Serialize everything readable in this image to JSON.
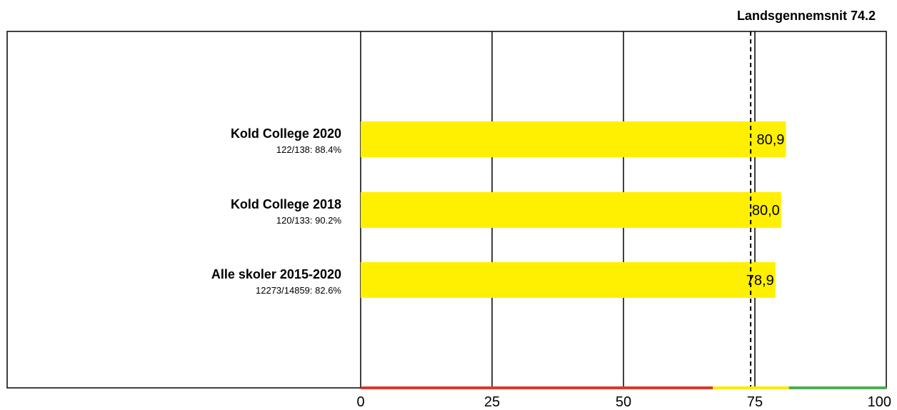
{
  "chart_data": {
    "type": "bar",
    "orientation": "horizontal",
    "categories": [
      "Kold College 2020",
      "Kold College 2018",
      "Alle skoler 2015-2020"
    ],
    "subtitles": [
      "122/138: 88.4%",
      "120/133: 90.2%",
      "12273/14859: 82.6%"
    ],
    "values": [
      80.9,
      80.0,
      78.9
    ],
    "value_labels": [
      "80,9",
      "80,0",
      "78,9"
    ],
    "xlim": [
      0,
      100
    ],
    "xticks": [
      0,
      25,
      50,
      75,
      100
    ],
    "xtick_labels": [
      "0",
      "25",
      "50",
      "75",
      "100"
    ],
    "reference_line": {
      "label": "Landsgennemsnit 74.2",
      "value": 74.2
    },
    "baseline_bands": [
      {
        "from": 0,
        "to": 67,
        "color": "#d93a2b"
      },
      {
        "from": 67,
        "to": 81.5,
        "color": "#ffe800"
      },
      {
        "from": 81.5,
        "to": 100,
        "color": "#4caf50"
      }
    ],
    "bar_color": "#ffef00",
    "gridlines": true,
    "legend": "none"
  }
}
